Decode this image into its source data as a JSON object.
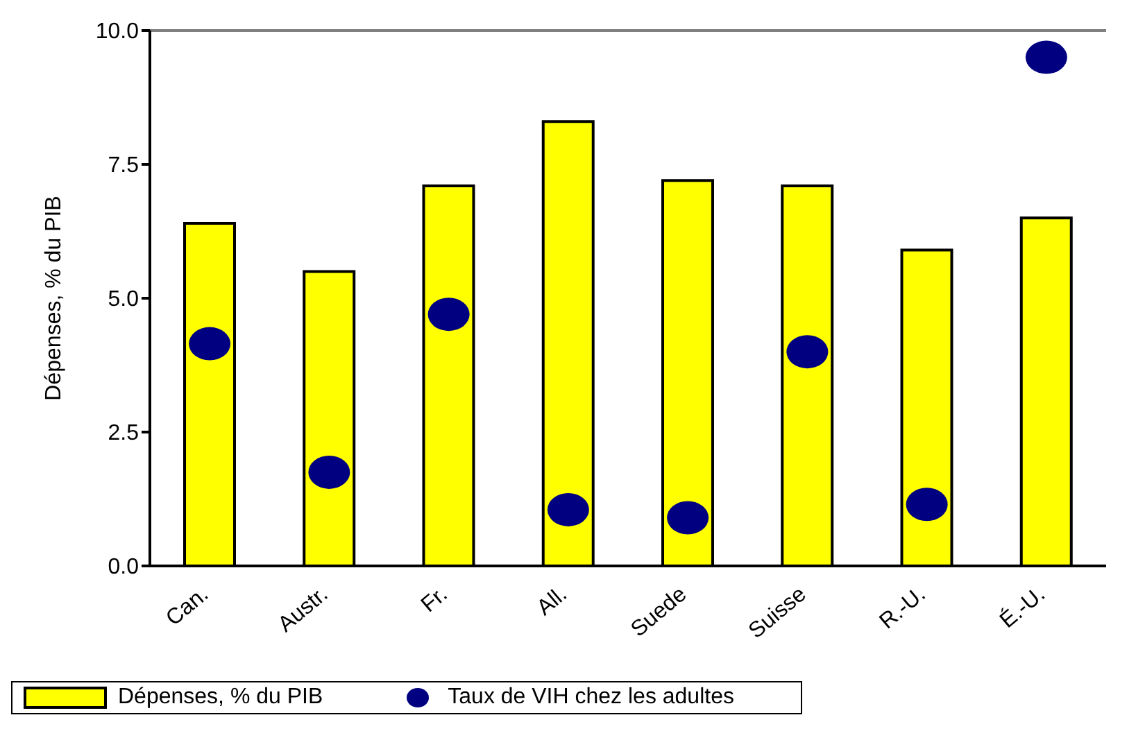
{
  "chart_data": {
    "type": "bar",
    "ylabel": "Dépenses, % du PIB",
    "categories": [
      "Can.",
      "Austr.",
      "Fr.",
      "All.",
      "Suede",
      "Suisse",
      "R.-U.",
      "É.-U."
    ],
    "series": [
      {
        "name": "Dépenses, % du PIB",
        "color": "#ffff00",
        "values": [
          6.4,
          5.5,
          7.1,
          8.3,
          7.2,
          7.1,
          5.9,
          6.5
        ]
      },
      {
        "name": "Taux de VIH chez les adultes",
        "type": "scatter",
        "color": "#000080",
        "values": [
          4.15,
          1.75,
          4.7,
          1.05,
          0.9,
          4.0,
          1.15,
          9.5
        ]
      }
    ],
    "ylim": [
      0,
      10
    ],
    "yticks": [
      {
        "value": 0,
        "label": "0.0"
      },
      {
        "value": 2.5,
        "label": "2.5"
      },
      {
        "value": 5,
        "label": "5.0"
      },
      {
        "value": 7.5,
        "label": "7.5"
      },
      {
        "value": 10,
        "label": "10.0"
      }
    ],
    "grid": false,
    "legend": "bottom",
    "marker": "circle"
  }
}
